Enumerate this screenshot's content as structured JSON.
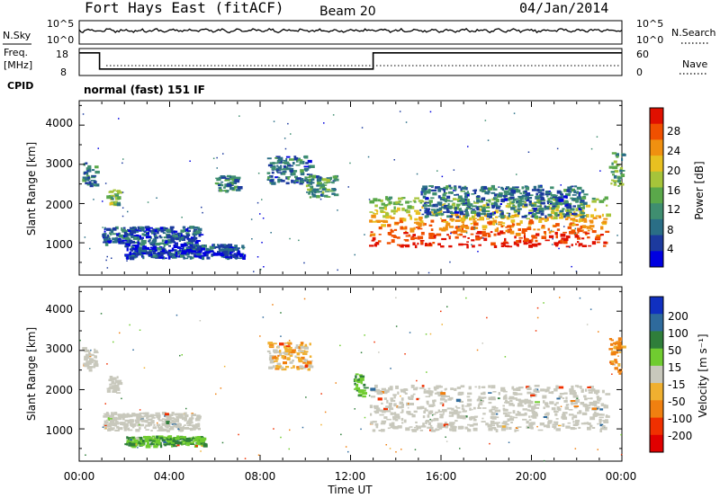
{
  "header": {
    "station": "Fort Hays East (fitACF)",
    "beam": "Beam 20",
    "date": "04/Jan/2014"
  },
  "noise_panel": {
    "left_label": "N.Sky",
    "right_label": "N.Search",
    "left_ticks": [
      "10^5",
      "10^0"
    ],
    "right_ticks": [
      "10^5",
      "10^0"
    ]
  },
  "freq_panel": {
    "left_label_1": "Freq.",
    "left_label_2": "[MHz]",
    "right_label": "Nave",
    "left_ticks": [
      "18",
      "8"
    ],
    "right_ticks": [
      "60",
      "0"
    ],
    "cpid_label": "CPID"
  },
  "cpid_text": "normal (fast) 151 IF",
  "power_panel": {
    "ylabel": "Slant Range [km]",
    "yticks": [
      "4000",
      "3000",
      "2000",
      "1000"
    ],
    "colorbar_label": "Power [dB]",
    "colorbar_ticks": [
      "28",
      "24",
      "20",
      "16",
      "12",
      "8",
      "4"
    ],
    "colors": [
      "#0000e0",
      "#1c3a9e",
      "#2a6e86",
      "#3f8e70",
      "#5aa84a",
      "#a6c43a",
      "#e8c020",
      "#f09010",
      "#f05000",
      "#e01000"
    ]
  },
  "velocity_panel": {
    "ylabel": "Slant Range [km]",
    "yticks": [
      "4000",
      "3000",
      "2000",
      "1000"
    ],
    "colorbar_label": "Velocity [m s⁻¹]",
    "colorbar_ticks": [
      "200",
      "100",
      "50",
      "15",
      "-15",
      "-50",
      "-100",
      "-200"
    ],
    "colors": [
      "#1030c0",
      "#2e6a9c",
      "#2f7e3a",
      "#70cc30",
      "#c8c8bc",
      "#f0b030",
      "#f08010",
      "#f03000",
      "#e00000"
    ]
  },
  "xaxis": {
    "ticks": [
      "00:00",
      "04:00",
      "08:00",
      "12:00",
      "16:00",
      "20:00",
      "00:00"
    ],
    "label": "Time UT"
  },
  "chart_data": [
    {
      "type": "line",
      "xlabel": "",
      "ylabel": "N.Sky",
      "series": [
        {
          "x": [
            0,
            24
          ],
          "values": [
            3.2,
            3.2
          ]
        }
      ]
    },
    {
      "type": "line",
      "xlabel": "",
      "ylabel": "Freq. [MHz]",
      "ylim": [
        8,
        18
      ],
      "series": [
        {
          "x": [
            0,
            0.9,
            0.9,
            13.0,
            13.0,
            24
          ],
          "values": [
            16.4,
            16.4,
            10.4,
            10.4,
            16.4,
            16.4
          ]
        }
      ]
    },
    {
      "type": "heatmap",
      "title": "",
      "xlabel": "",
      "ylabel": "Slant Range [km]",
      "xlim": [
        0,
        24
      ],
      "ylim": [
        200,
        4600
      ],
      "colorbar": "Power [dB]",
      "colorbar_range": [
        3,
        30
      ],
      "regions": [
        {
          "x0": 0.1,
          "x1": 0.7,
          "y0": 2450,
          "y1": 3050,
          "level": 0.25
        },
        {
          "x0": 1.2,
          "x1": 1.7,
          "y0": 1900,
          "y1": 2350,
          "level": 0.45
        },
        {
          "x0": 1.0,
          "x1": 5.3,
          "y0": 950,
          "y1": 1400,
          "level": 0.2
        },
        {
          "x0": 2.0,
          "x1": 7.3,
          "y0": 600,
          "y1": 950,
          "level": 0.15
        },
        {
          "x0": 6.0,
          "x1": 7.0,
          "y0": 2300,
          "y1": 2700,
          "level": 0.3
        },
        {
          "x0": 8.3,
          "x1": 10.2,
          "y0": 2500,
          "y1": 3200,
          "level": 0.25
        },
        {
          "x0": 10.0,
          "x1": 11.3,
          "y0": 2150,
          "y1": 2700,
          "level": 0.35
        },
        {
          "x0": 12.8,
          "x1": 23.3,
          "y0": 900,
          "y1": 2150,
          "level": 0.75
        },
        {
          "x0": 15.0,
          "x1": 22.3,
          "y0": 1650,
          "y1": 2450,
          "level": 0.25
        },
        {
          "x0": 23.4,
          "x1": 24.0,
          "y0": 2400,
          "y1": 3300,
          "level": 0.4
        }
      ]
    },
    {
      "type": "heatmap",
      "title": "",
      "xlabel": "Time UT",
      "ylabel": "Slant Range [km]",
      "xlim": [
        0,
        24
      ],
      "ylim": [
        200,
        4600
      ],
      "colorbar": "Velocity [m s⁻¹]",
      "colorbar_range": [
        -200,
        200
      ],
      "regions": [
        {
          "x0": 0.1,
          "x1": 0.7,
          "y0": 2450,
          "y1": 3050,
          "v": 0
        },
        {
          "x0": 1.2,
          "x1": 1.7,
          "y0": 1900,
          "y1": 2350,
          "v": 0
        },
        {
          "x0": 1.0,
          "x1": 5.3,
          "y0": 950,
          "y1": 1400,
          "v": 0
        },
        {
          "x0": 2.0,
          "x1": 5.5,
          "y0": 550,
          "y1": 800,
          "v": 30
        },
        {
          "x0": 8.3,
          "x1": 10.2,
          "y0": 2500,
          "y1": 3200,
          "v": -20
        },
        {
          "x0": 12.8,
          "x1": 23.3,
          "y0": 950,
          "y1": 2100,
          "v": 0
        },
        {
          "x0": 12.1,
          "x1": 12.6,
          "y0": 1800,
          "y1": 2400,
          "v": 30
        },
        {
          "x0": 23.4,
          "x1": 24.0,
          "y0": 2400,
          "y1": 3300,
          "v": -40
        }
      ]
    }
  ]
}
